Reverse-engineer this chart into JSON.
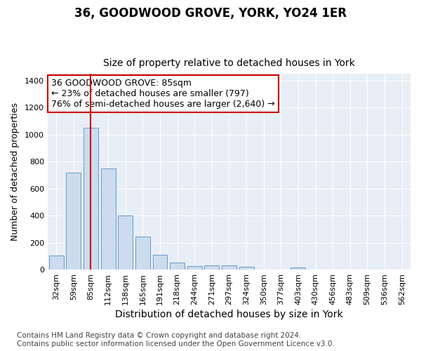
{
  "title": "36, GOODWOOD GROVE, YORK, YO24 1ER",
  "subtitle": "Size of property relative to detached houses in York",
  "xlabel": "Distribution of detached houses by size in York",
  "ylabel": "Number of detached properties",
  "categories": [
    "32sqm",
    "59sqm",
    "85sqm",
    "112sqm",
    "138sqm",
    "165sqm",
    "191sqm",
    "218sqm",
    "244sqm",
    "271sqm",
    "297sqm",
    "324sqm",
    "350sqm",
    "377sqm",
    "403sqm",
    "430sqm",
    "456sqm",
    "483sqm",
    "509sqm",
    "536sqm",
    "562sqm"
  ],
  "values": [
    105,
    720,
    1050,
    750,
    400,
    245,
    110,
    50,
    28,
    32,
    30,
    22,
    0,
    0,
    18,
    0,
    0,
    0,
    0,
    0,
    0
  ],
  "bar_color": "#ccdcee",
  "bar_edgecolor": "#6699cc",
  "highlight_index": 2,
  "highlight_color": "#cc0000",
  "annotation_text": "36 GOODWOOD GROVE: 85sqm\n← 23% of detached houses are smaller (797)\n76% of semi-detached houses are larger (2,640) →",
  "annotation_box_facecolor": "#ffffff",
  "annotation_box_edgecolor": "#cc0000",
  "ylim": [
    0,
    1450
  ],
  "yticks": [
    0,
    200,
    400,
    600,
    800,
    1000,
    1200,
    1400
  ],
  "fig_bg_color": "#ffffff",
  "plot_bg_color": "#e8eef5",
  "grid_color": "#ffffff",
  "title_fontsize": 12,
  "subtitle_fontsize": 10,
  "xlabel_fontsize": 10,
  "ylabel_fontsize": 9,
  "tick_fontsize": 8,
  "annotation_fontsize": 9,
  "footnote": "Contains HM Land Registry data © Crown copyright and database right 2024.\nContains public sector information licensed under the Open Government Licence v3.0.",
  "footnote_fontsize": 7.5
}
